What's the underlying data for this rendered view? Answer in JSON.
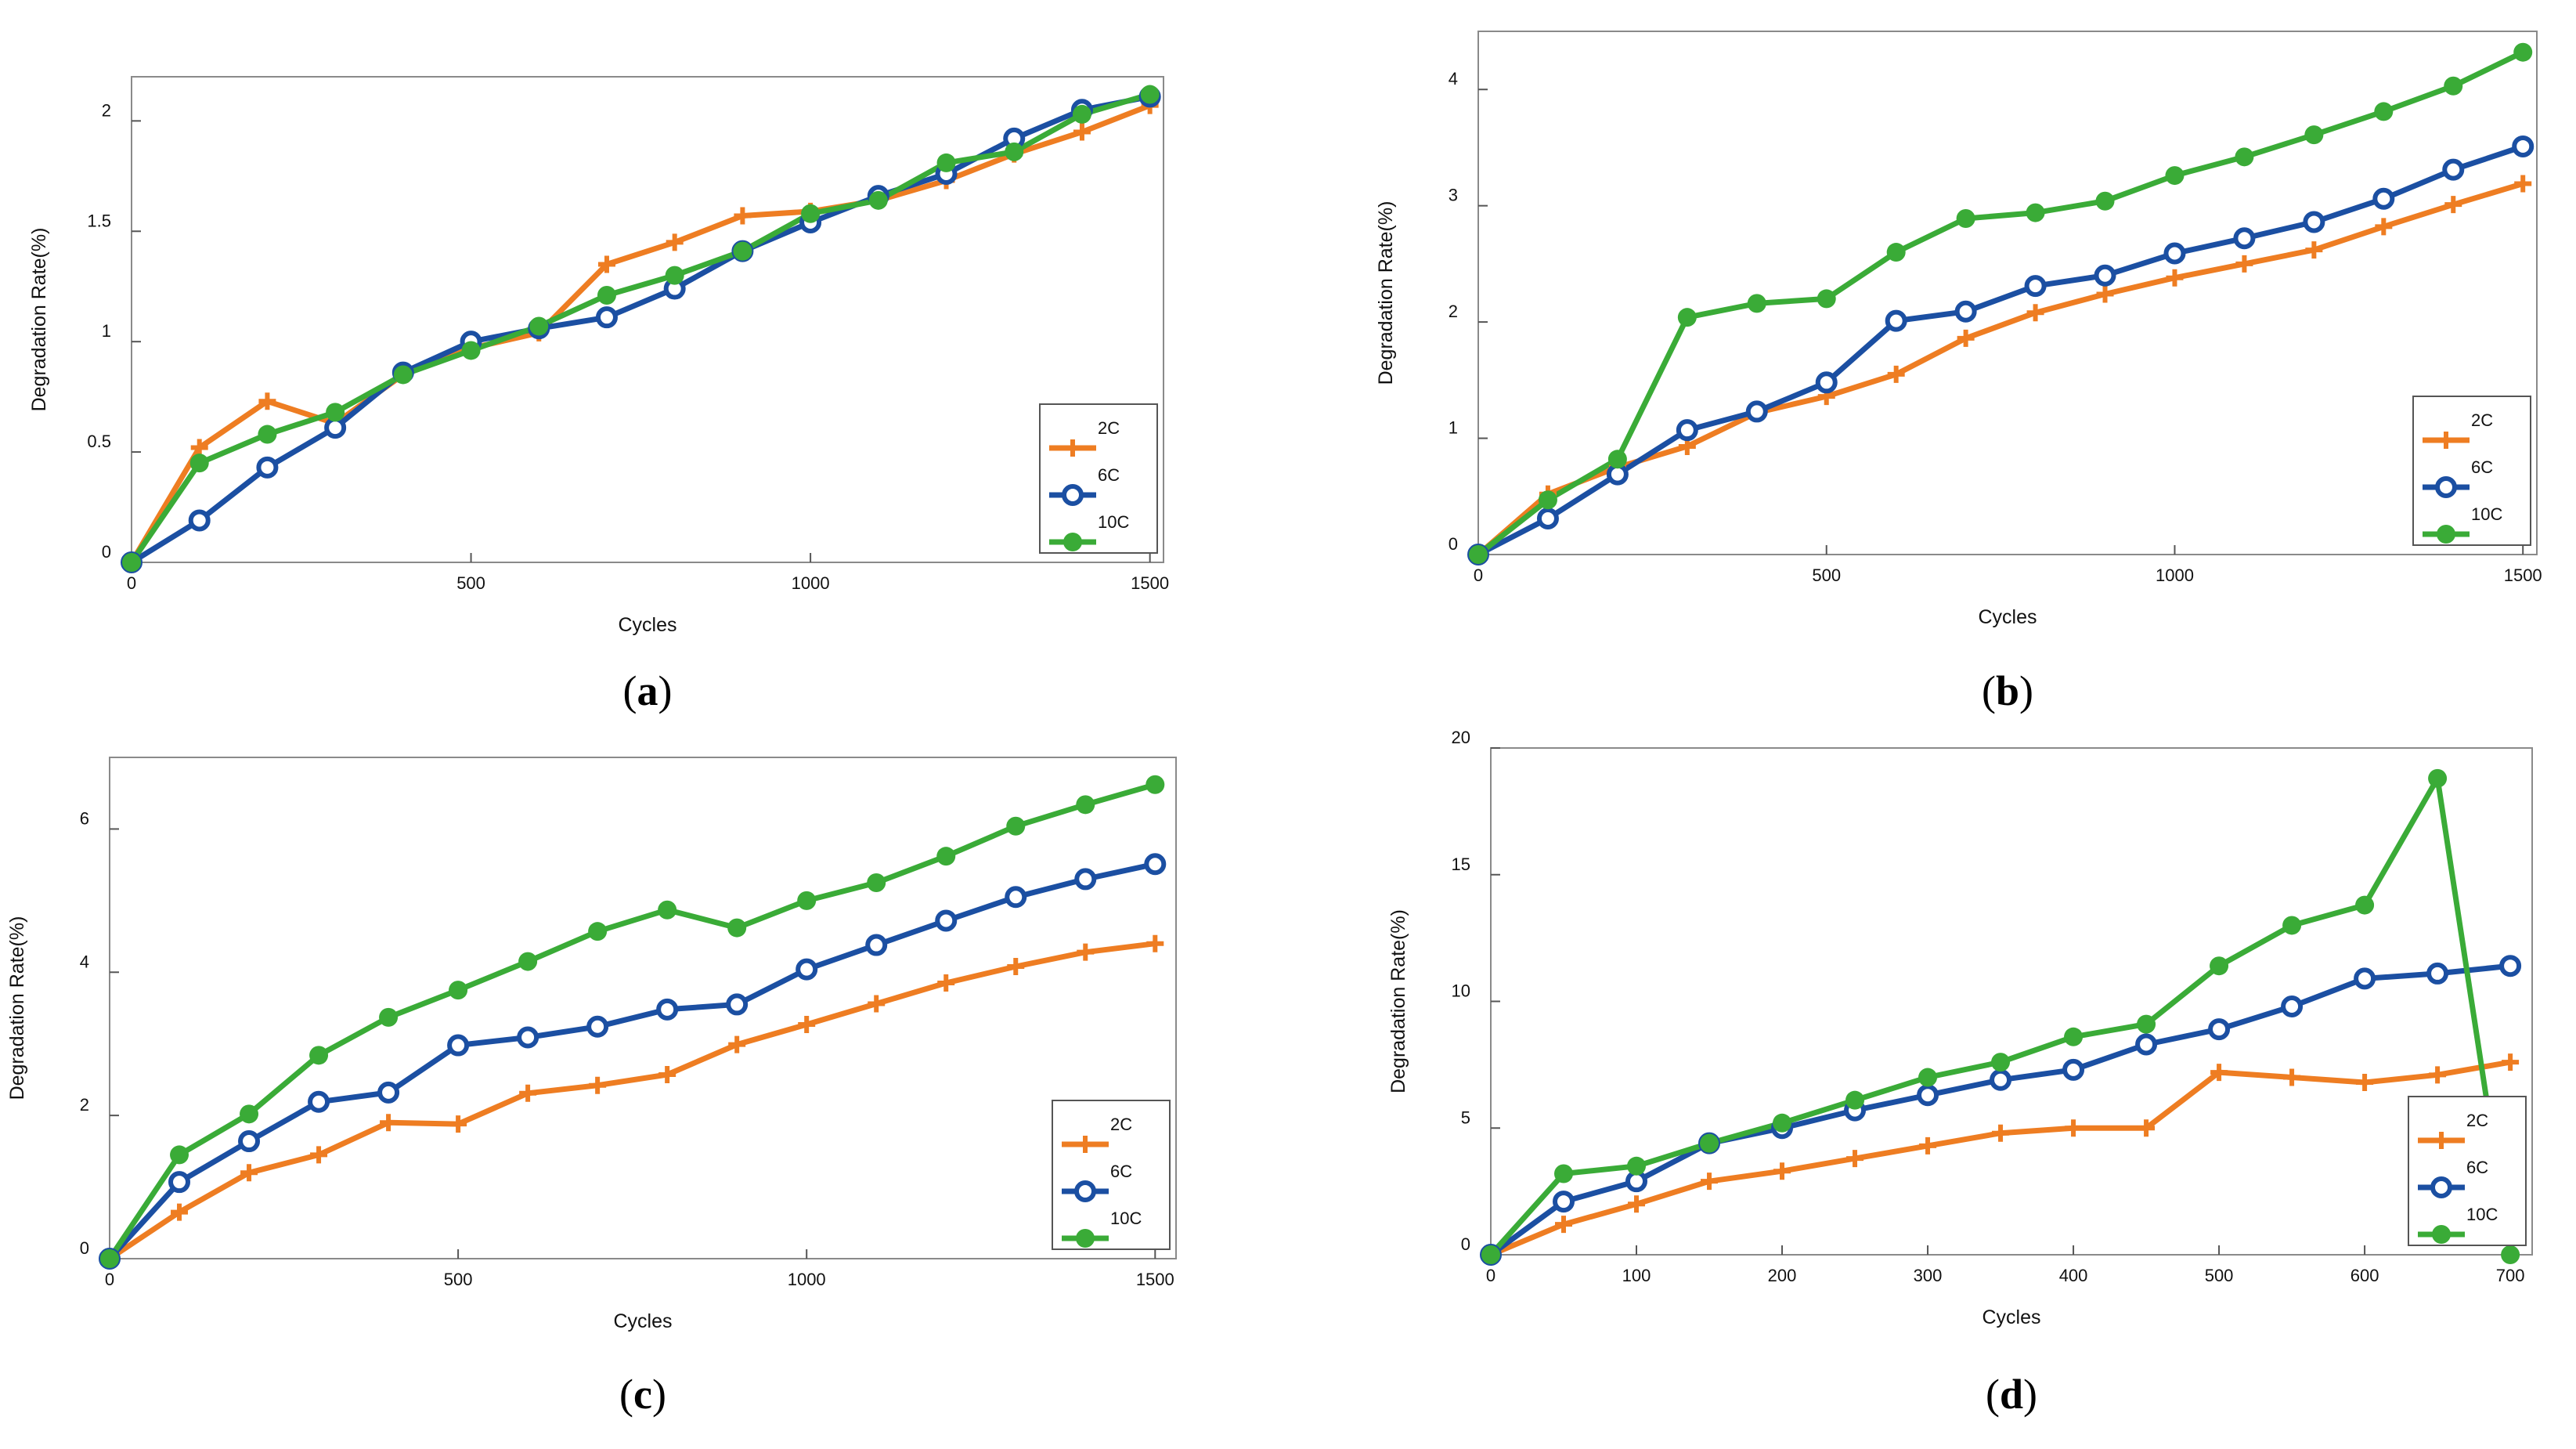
{
  "colors": {
    "2C": "#ee7d22",
    "6C": "#1b4fa2",
    "10C": "#3aab37"
  },
  "chart_data": [
    {
      "type": "line",
      "caption": "a",
      "xlabel": "Cycles",
      "ylabel": "Degradation Rate(%)",
      "xlim": [
        0,
        1520
      ],
      "ylim": [
        0,
        2.2
      ],
      "xticks": [
        0,
        500,
        1000,
        1500
      ],
      "yticks": [
        0,
        0.5,
        1,
        1.5,
        2
      ],
      "ytick_labels": [
        "0",
        "0.5",
        "1",
        "1.5",
        "2"
      ],
      "legend_position": "lower-right",
      "series": [
        {
          "name": "2C",
          "marker": "plus",
          "x": [
            0,
            100,
            200,
            300,
            400,
            500,
            600,
            700,
            800,
            900,
            1000,
            1100,
            1200,
            1300,
            1400,
            1500
          ],
          "y": [
            0,
            0.52,
            0.73,
            0.63,
            0.85,
            0.97,
            1.04,
            1.35,
            1.45,
            1.57,
            1.59,
            1.64,
            1.73,
            1.85,
            1.95,
            2.07
          ]
        },
        {
          "name": "6C",
          "marker": "circle",
          "x": [
            0,
            100,
            200,
            300,
            400,
            500,
            600,
            700,
            800,
            900,
            1000,
            1100,
            1200,
            1300,
            1400,
            1500
          ],
          "y": [
            0,
            0.19,
            0.43,
            0.61,
            0.86,
            1.0,
            1.06,
            1.11,
            1.24,
            1.41,
            1.54,
            1.66,
            1.76,
            1.92,
            2.05,
            2.11
          ]
        },
        {
          "name": "10C",
          "marker": "dot",
          "x": [
            0,
            100,
            200,
            300,
            400,
            500,
            600,
            700,
            800,
            900,
            1000,
            1100,
            1200,
            1300,
            1400,
            1500
          ],
          "y": [
            0,
            0.45,
            0.58,
            0.68,
            0.85,
            0.96,
            1.07,
            1.21,
            1.3,
            1.41,
            1.58,
            1.64,
            1.81,
            1.86,
            2.03,
            2.12
          ]
        }
      ]
    },
    {
      "type": "line",
      "caption": "b",
      "xlabel": "Cycles",
      "ylabel": "Degradation Rate(%)",
      "xlim": [
        0,
        1520
      ],
      "ylim": [
        0,
        4.5
      ],
      "xticks": [
        0,
        500,
        1000,
        1500
      ],
      "yticks": [
        0,
        1,
        2,
        3,
        4
      ],
      "ytick_labels": [
        "0",
        "1",
        "2",
        "3",
        "4"
      ],
      "legend_position": "lower-right",
      "series": [
        {
          "name": "2C",
          "marker": "plus",
          "x": [
            0,
            100,
            200,
            300,
            400,
            500,
            600,
            700,
            800,
            900,
            1000,
            1100,
            1200,
            1300,
            1400,
            1500
          ],
          "y": [
            0,
            0.52,
            0.75,
            0.93,
            1.22,
            1.36,
            1.55,
            1.86,
            2.08,
            2.24,
            2.38,
            2.5,
            2.62,
            2.82,
            3.01,
            3.19
          ]
        },
        {
          "name": "6C",
          "marker": "circle",
          "x": [
            0,
            100,
            200,
            300,
            400,
            500,
            600,
            700,
            800,
            900,
            1000,
            1100,
            1200,
            1300,
            1400,
            1500
          ],
          "y": [
            0,
            0.31,
            0.69,
            1.07,
            1.23,
            1.48,
            2.01,
            2.09,
            2.31,
            2.4,
            2.59,
            2.72,
            2.86,
            3.06,
            3.31,
            3.51
          ]
        },
        {
          "name": "10C",
          "marker": "dot",
          "x": [
            0,
            100,
            200,
            300,
            400,
            500,
            600,
            700,
            800,
            900,
            1000,
            1100,
            1200,
            1300,
            1400,
            1500
          ],
          "y": [
            0,
            0.47,
            0.82,
            2.04,
            2.16,
            2.2,
            2.6,
            2.89,
            2.94,
            3.04,
            3.26,
            3.42,
            3.61,
            3.81,
            4.03,
            4.32
          ]
        }
      ]
    },
    {
      "type": "line",
      "caption": "c",
      "xlabel": "Cycles",
      "ylabel": "Degradation Rate(%)",
      "xlim": [
        0,
        1530
      ],
      "ylim": [
        0,
        7
      ],
      "xticks": [
        0,
        500,
        1000,
        1500
      ],
      "yticks": [
        0,
        2,
        4,
        6
      ],
      "ytick_labels": [
        "0",
        "2",
        "4",
        "6"
      ],
      "legend_position": "lower-right",
      "series": [
        {
          "name": "2C",
          "marker": "plus",
          "x": [
            0,
            100,
            200,
            300,
            400,
            500,
            600,
            700,
            800,
            900,
            1000,
            1100,
            1200,
            1300,
            1400,
            1500
          ],
          "y": [
            0,
            0.65,
            1.2,
            1.45,
            1.9,
            1.88,
            2.31,
            2.42,
            2.57,
            2.99,
            3.27,
            3.56,
            3.85,
            4.08,
            4.28,
            4.4
          ]
        },
        {
          "name": "6C",
          "marker": "circle",
          "x": [
            0,
            100,
            200,
            300,
            400,
            500,
            600,
            700,
            800,
            900,
            1000,
            1100,
            1200,
            1300,
            1400,
            1500
          ],
          "y": [
            0,
            1.07,
            1.64,
            2.19,
            2.32,
            2.98,
            3.09,
            3.24,
            3.48,
            3.55,
            4.04,
            4.38,
            4.72,
            5.05,
            5.3,
            5.51
          ]
        },
        {
          "name": "10C",
          "marker": "dot",
          "x": [
            0,
            100,
            200,
            300,
            400,
            500,
            600,
            700,
            800,
            900,
            1000,
            1100,
            1200,
            1300,
            1400,
            1500
          ],
          "y": [
            0,
            1.45,
            2.02,
            2.84,
            3.37,
            3.75,
            4.15,
            4.57,
            4.87,
            4.62,
            5.0,
            5.25,
            5.62,
            6.04,
            6.34,
            6.62
          ]
        }
      ]
    },
    {
      "type": "line",
      "caption": "d",
      "xlabel": "Cycles",
      "ylabel": "Degradation Rate(%)",
      "xlim": [
        0,
        715
      ],
      "ylim": [
        0,
        20
      ],
      "xticks": [
        0,
        100,
        200,
        300,
        400,
        500,
        600,
        700
      ],
      "yticks": [
        0,
        5,
        10,
        15,
        20
      ],
      "ytick_labels": [
        "0",
        "5",
        "10",
        "15",
        "20"
      ],
      "legend_position": "lower-right",
      "series": [
        {
          "name": "2C",
          "marker": "plus",
          "x": [
            0,
            50,
            100,
            150,
            200,
            250,
            300,
            350,
            400,
            450,
            500,
            550,
            600,
            650,
            700
          ],
          "y": [
            0,
            1.2,
            2.0,
            2.9,
            3.3,
            3.8,
            4.3,
            4.8,
            5.0,
            5.0,
            7.2,
            7.0,
            6.8,
            7.1,
            7.6
          ]
        },
        {
          "name": "6C",
          "marker": "circle",
          "x": [
            0,
            50,
            100,
            150,
            200,
            250,
            300,
            350,
            400,
            450,
            500,
            550,
            600,
            650,
            700
          ],
          "y": [
            0,
            2.1,
            2.9,
            4.4,
            5.0,
            5.7,
            6.3,
            6.9,
            7.3,
            8.3,
            8.9,
            9.8,
            10.9,
            11.1,
            11.4
          ]
        },
        {
          "name": "10C",
          "marker": "dot",
          "x": [
            0,
            50,
            100,
            150,
            200,
            250,
            300,
            350,
            400,
            450,
            500,
            550,
            600,
            650,
            700
          ],
          "y": [
            0,
            3.2,
            3.5,
            4.4,
            5.2,
            6.1,
            7.0,
            7.6,
            8.6,
            9.1,
            11.4,
            13.0,
            13.8,
            18.8,
            0
          ]
        }
      ]
    }
  ]
}
